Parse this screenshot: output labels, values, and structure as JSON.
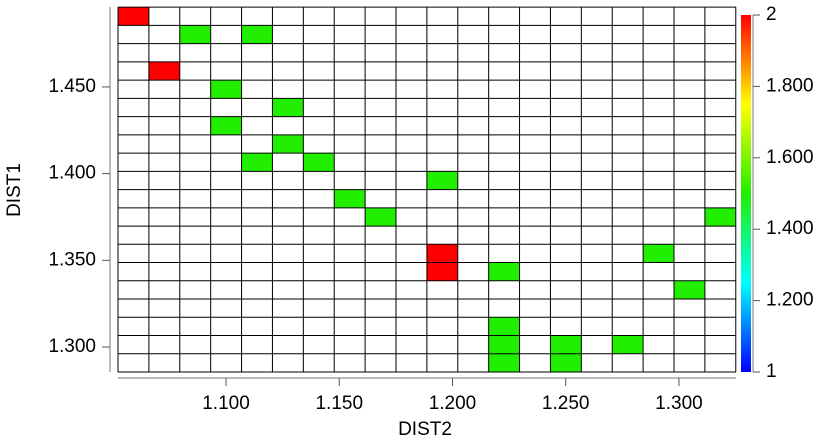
{
  "chart_data": {
    "type": "heatmap",
    "x_label": "DIST2",
    "y_label": "DIST1",
    "xlim": [
      1.0523,
      1.3252
    ],
    "ylim": [
      1.2856,
      1.4961
    ],
    "bin_width": [
      0.01364,
      0.01052
    ],
    "xticks": [
      {
        "value": 1.1,
        "label": "1.100"
      },
      {
        "value": 1.15,
        "label": "1.150"
      },
      {
        "value": 1.2,
        "label": "1.200"
      },
      {
        "value": 1.25,
        "label": "1.250"
      },
      {
        "value": 1.3,
        "label": "1.300"
      }
    ],
    "yticks": [
      {
        "value": 1.3,
        "label": "1.300"
      },
      {
        "value": 1.35,
        "label": "1.350"
      },
      {
        "value": 1.4,
        "label": "1.400"
      },
      {
        "value": 1.45,
        "label": "1.450"
      }
    ],
    "clim": [
      1,
      2
    ],
    "cticks": [
      1,
      {
        "value": 1.2,
        "label": "1.200"
      },
      {
        "value": 1.4,
        "label": "1.400"
      },
      {
        "value": 1.6,
        "label": "1.600"
      },
      {
        "value": 1.8,
        "label": "1.800"
      },
      2
    ],
    "colorscale": [
      "#0000ff",
      "#00ffff",
      "#22ee00",
      "#ffff00",
      "#ff0000"
    ],
    "cells": [
      {
        "x": 1.0591,
        "y": 1.4908,
        "value": 2
      },
      {
        "x": 1.0864,
        "y": 1.4803,
        "value": 1.5
      },
      {
        "x": 1.1137,
        "y": 1.4803,
        "value": 1.5
      },
      {
        "x": 1.0727,
        "y": 1.4593,
        "value": 2
      },
      {
        "x": 1.1,
        "y": 1.4487,
        "value": 1.5
      },
      {
        "x": 1.1273,
        "y": 1.4382,
        "value": 1.5
      },
      {
        "x": 1.1,
        "y": 1.4277,
        "value": 1.5
      },
      {
        "x": 1.1273,
        "y": 1.4172,
        "value": 1.5
      },
      {
        "x": 1.1137,
        "y": 1.4066,
        "value": 1.5
      },
      {
        "x": 1.1409,
        "y": 1.4066,
        "value": 1.5
      },
      {
        "x": 1.1955,
        "y": 1.3961,
        "value": 1.5
      },
      {
        "x": 1.1546,
        "y": 1.3856,
        "value": 1.5
      },
      {
        "x": 1.1682,
        "y": 1.3751,
        "value": 1.5
      },
      {
        "x": 1.3183,
        "y": 1.3751,
        "value": 1.5
      },
      {
        "x": 1.1955,
        "y": 1.354,
        "value": 2
      },
      {
        "x": 1.291,
        "y": 1.354,
        "value": 1.5
      },
      {
        "x": 1.1955,
        "y": 1.3435,
        "value": 2
      },
      {
        "x": 1.2228,
        "y": 1.3435,
        "value": 1.5
      },
      {
        "x": 1.3046,
        "y": 1.333,
        "value": 1.5
      },
      {
        "x": 1.2228,
        "y": 1.3119,
        "value": 1.5
      },
      {
        "x": 1.2228,
        "y": 1.3014,
        "value": 1.5
      },
      {
        "x": 1.2501,
        "y": 1.3014,
        "value": 1.5
      },
      {
        "x": 1.2774,
        "y": 1.3014,
        "value": 1.5
      },
      {
        "x": 1.2228,
        "y": 1.2909,
        "value": 1.5
      },
      {
        "x": 1.2501,
        "y": 1.2909,
        "value": 1.5
      }
    ]
  }
}
